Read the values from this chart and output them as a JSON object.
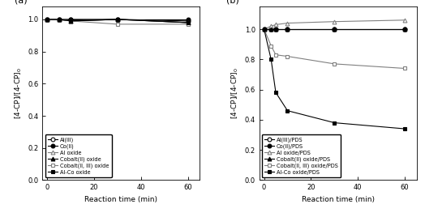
{
  "time_a": [
    0,
    5,
    10,
    30,
    60
  ],
  "panel_a": {
    "Al_III": [
      1.0,
      1.0,
      1.0,
      1.0,
      0.99
    ],
    "Co_II": [
      1.0,
      1.0,
      1.0,
      1.0,
      1.0
    ],
    "Al_oxide": [
      1.0,
      1.0,
      0.99,
      1.0,
      0.98
    ],
    "CoII_oxide": [
      1.0,
      1.0,
      0.99,
      1.0,
      0.98
    ],
    "CoIIIII_oxide": [
      1.0,
      1.0,
      0.99,
      0.97,
      0.97
    ],
    "AlCo_oxide": [
      1.0,
      1.0,
      0.99,
      1.0,
      0.98
    ]
  },
  "time_b": [
    0,
    3,
    5,
    10,
    30,
    60
  ],
  "panel_b": {
    "Al_III_PDS": [
      1.0,
      1.0,
      1.0,
      1.0,
      1.0,
      1.0
    ],
    "Co_II_PDS": [
      1.0,
      1.0,
      1.0,
      1.0,
      1.0,
      1.0
    ],
    "Al_oxide_PDS": [
      1.0,
      1.02,
      1.03,
      1.04,
      1.05,
      1.06
    ],
    "CoII_oxide_PDS": [
      1.0,
      1.0,
      1.0,
      1.0,
      1.0,
      1.0
    ],
    "CoIIIII_oxide_PDS": [
      1.0,
      0.89,
      0.83,
      0.82,
      0.77,
      0.74
    ],
    "AlCo_oxide_PDS": [
      1.0,
      0.8,
      0.58,
      0.46,
      0.38,
      0.34
    ]
  },
  "ylabel": "[4-CP]/[4-CP]$_0$",
  "xlabel": "Reaction time (min)",
  "legend_a": [
    "Al(III)",
    "Co(II)",
    "Al oxide",
    "Cobalt(II) oxide",
    "Cobalt(II, III) oxide",
    "Al-Co oxide"
  ],
  "legend_b": [
    "Al(III)/PDS",
    "Co(II)/PDS",
    "Al oxide/PDS",
    "Cobalt(II) oxide/PDS",
    "Cobalt(II, III) oxide/PDS",
    "Al-Co oxide/PDS"
  ],
  "markers": [
    "o",
    "o",
    "^",
    "^",
    "s",
    "s"
  ],
  "fillstyles": [
    "none",
    "full",
    "none",
    "full",
    "none",
    "full"
  ],
  "colors": [
    "black",
    "black",
    "gray",
    "black",
    "gray",
    "black"
  ]
}
